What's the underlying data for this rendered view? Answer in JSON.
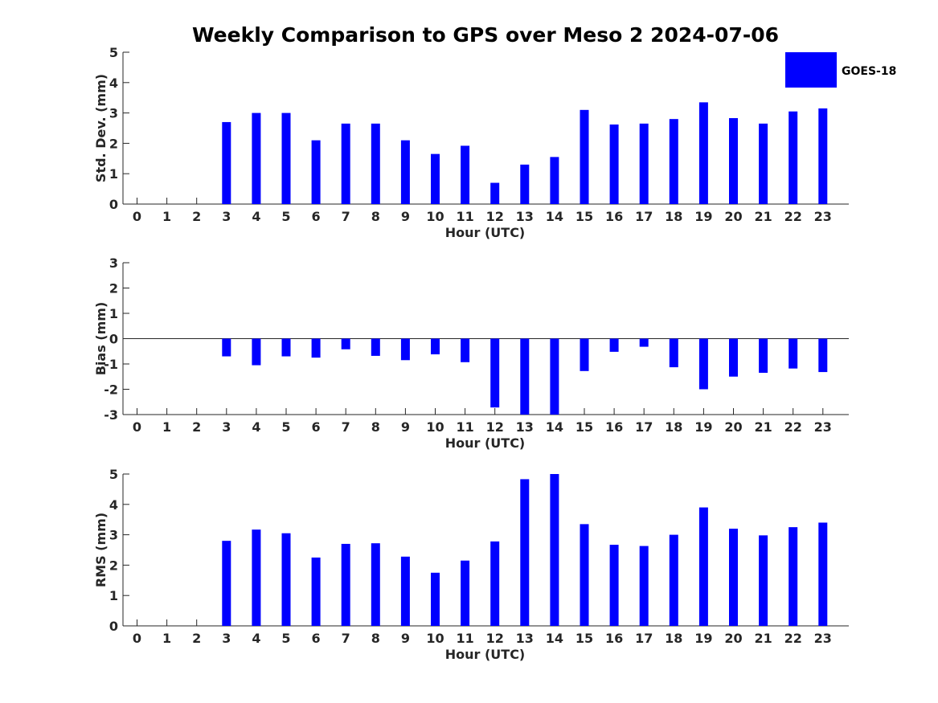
{
  "chart_data": [
    {
      "type": "bar",
      "title": "Weekly Comparison to GPS over Meso 2 2024-07-06",
      "xlabel": "Hour (UTC)",
      "ylabel": "Std. Dev. (mm)",
      "ylim": [
        0,
        5
      ],
      "yticks": [
        "0",
        "1",
        "2",
        "3",
        "4",
        "5"
      ],
      "categories": [
        "0",
        "1",
        "2",
        "3",
        "4",
        "5",
        "6",
        "7",
        "8",
        "9",
        "10",
        "11",
        "12",
        "13",
        "14",
        "15",
        "16",
        "17",
        "18",
        "19",
        "20",
        "21",
        "22",
        "23"
      ],
      "series": [
        {
          "name": "GOES-18",
          "color": "#0000ff",
          "values": [
            null,
            null,
            null,
            2.7,
            3.0,
            3.0,
            2.1,
            2.65,
            2.65,
            2.1,
            1.65,
            1.92,
            0.7,
            1.3,
            1.55,
            3.1,
            2.62,
            2.65,
            2.8,
            3.35,
            2.83,
            2.65,
            3.05,
            3.15
          ]
        }
      ],
      "grid": false,
      "legend": "top-right"
    },
    {
      "type": "bar",
      "xlabel": "Hour (UTC)",
      "ylabel": "Bias (mm)",
      "ylim": [
        -3,
        3
      ],
      "yticks": [
        "-3",
        "-2",
        "-1",
        "0",
        "1",
        "2",
        "3"
      ],
      "categories": [
        "0",
        "1",
        "2",
        "3",
        "4",
        "5",
        "6",
        "7",
        "8",
        "9",
        "10",
        "11",
        "12",
        "13",
        "14",
        "15",
        "16",
        "17",
        "18",
        "19",
        "20",
        "21",
        "22",
        "23"
      ],
      "series": [
        {
          "name": "GOES-18",
          "color": "#0000ff",
          "values": [
            null,
            null,
            null,
            -0.7,
            -1.05,
            -0.7,
            -0.75,
            -0.42,
            -0.68,
            -0.85,
            -0.62,
            -0.93,
            -2.72,
            -3.0,
            -3.0,
            -1.28,
            -0.52,
            -0.32,
            -1.13,
            -2.0,
            -1.5,
            -1.35,
            -1.18,
            -1.32
          ]
        }
      ],
      "grid": false
    },
    {
      "type": "bar",
      "xlabel": "Hour (UTC)",
      "ylabel": "RMS (mm)",
      "ylim": [
        0,
        5
      ],
      "yticks": [
        "0",
        "1",
        "2",
        "3",
        "4",
        "5"
      ],
      "categories": [
        "0",
        "1",
        "2",
        "3",
        "4",
        "5",
        "6",
        "7",
        "8",
        "9",
        "10",
        "11",
        "12",
        "13",
        "14",
        "15",
        "16",
        "17",
        "18",
        "19",
        "20",
        "21",
        "22",
        "23"
      ],
      "series": [
        {
          "name": "GOES-18",
          "color": "#0000ff",
          "values": [
            null,
            null,
            null,
            2.8,
            3.17,
            3.05,
            2.25,
            2.7,
            2.72,
            2.28,
            1.75,
            2.15,
            2.78,
            4.83,
            5.0,
            3.35,
            2.67,
            2.63,
            3.0,
            3.9,
            3.2,
            2.98,
            3.25,
            3.4
          ]
        }
      ],
      "grid": false
    }
  ],
  "legend": {
    "label": "GOES-18",
    "color": "#0000ff"
  }
}
